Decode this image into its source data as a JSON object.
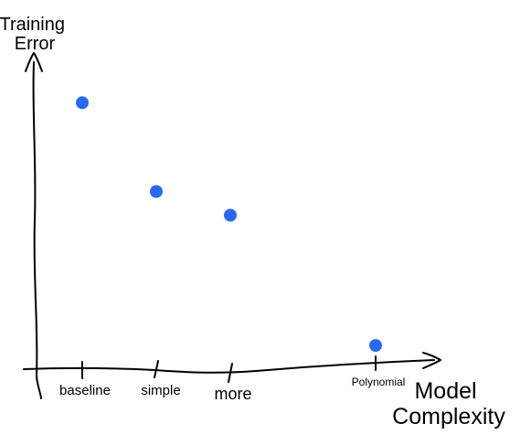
{
  "chart_data": {
    "type": "scatter",
    "title": "",
    "ylabel_lines": [
      "Training",
      "Error"
    ],
    "xlabel_lines": [
      "Model",
      "Complexity"
    ],
    "categories": [
      "baseline",
      "simple",
      "more",
      "Polynomial"
    ],
    "values": [
      0.9,
      0.6,
      0.52,
      0.08
    ],
    "ylim": [
      0,
      1
    ],
    "grid": false,
    "legend": "none",
    "point_color": "#2869f2"
  }
}
